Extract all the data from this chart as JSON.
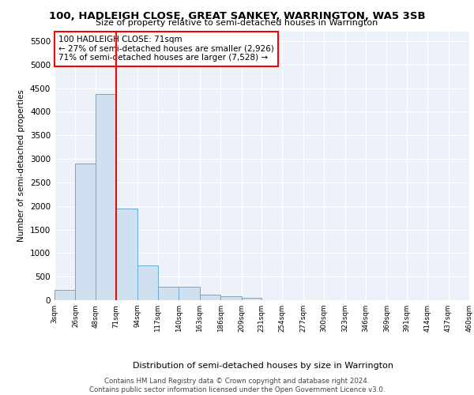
{
  "title": "100, HADLEIGH CLOSE, GREAT SANKEY, WARRINGTON, WA5 3SB",
  "subtitle": "Size of property relative to semi-detached houses in Warrington",
  "xlabel": "Distribution of semi-detached houses by size in Warrington",
  "ylabel": "Number of semi-detached properties",
  "bar_color": "#cfe0f0",
  "bar_edge_color": "#6aaad4",
  "background_color": "#edf2fa",
  "vline_x": 71,
  "vline_color": "red",
  "annotation_text": "100 HADLEIGH CLOSE: 71sqm\n← 27% of semi-detached houses are smaller (2,926)\n71% of semi-detached houses are larger (7,528) →",
  "annotation_box_color": "white",
  "annotation_box_edge": "red",
  "footer_text": "Contains HM Land Registry data © Crown copyright and database right 2024.\nContains public sector information licensed under the Open Government Licence v3.0.",
  "bin_edges": [
    3,
    26,
    48,
    71,
    94,
    117,
    140,
    163,
    186,
    209,
    231,
    254,
    277,
    300,
    323,
    346,
    369,
    391,
    414,
    437,
    460
  ],
  "bin_labels": [
    "3sqm",
    "26sqm",
    "48sqm",
    "71sqm",
    "94sqm",
    "117sqm",
    "140sqm",
    "163sqm",
    "186sqm",
    "209sqm",
    "231sqm",
    "254sqm",
    "277sqm",
    "300sqm",
    "323sqm",
    "346sqm",
    "369sqm",
    "391sqm",
    "414sqm",
    "437sqm",
    "460sqm"
  ],
  "bar_heights": [
    220,
    2900,
    4380,
    1940,
    740,
    290,
    290,
    115,
    80,
    45,
    0,
    0,
    0,
    0,
    0,
    0,
    0,
    0,
    0,
    0
  ],
  "ylim": [
    0,
    5700
  ],
  "yticks": [
    0,
    500,
    1000,
    1500,
    2000,
    2500,
    3000,
    3500,
    4000,
    4500,
    5000,
    5500
  ]
}
